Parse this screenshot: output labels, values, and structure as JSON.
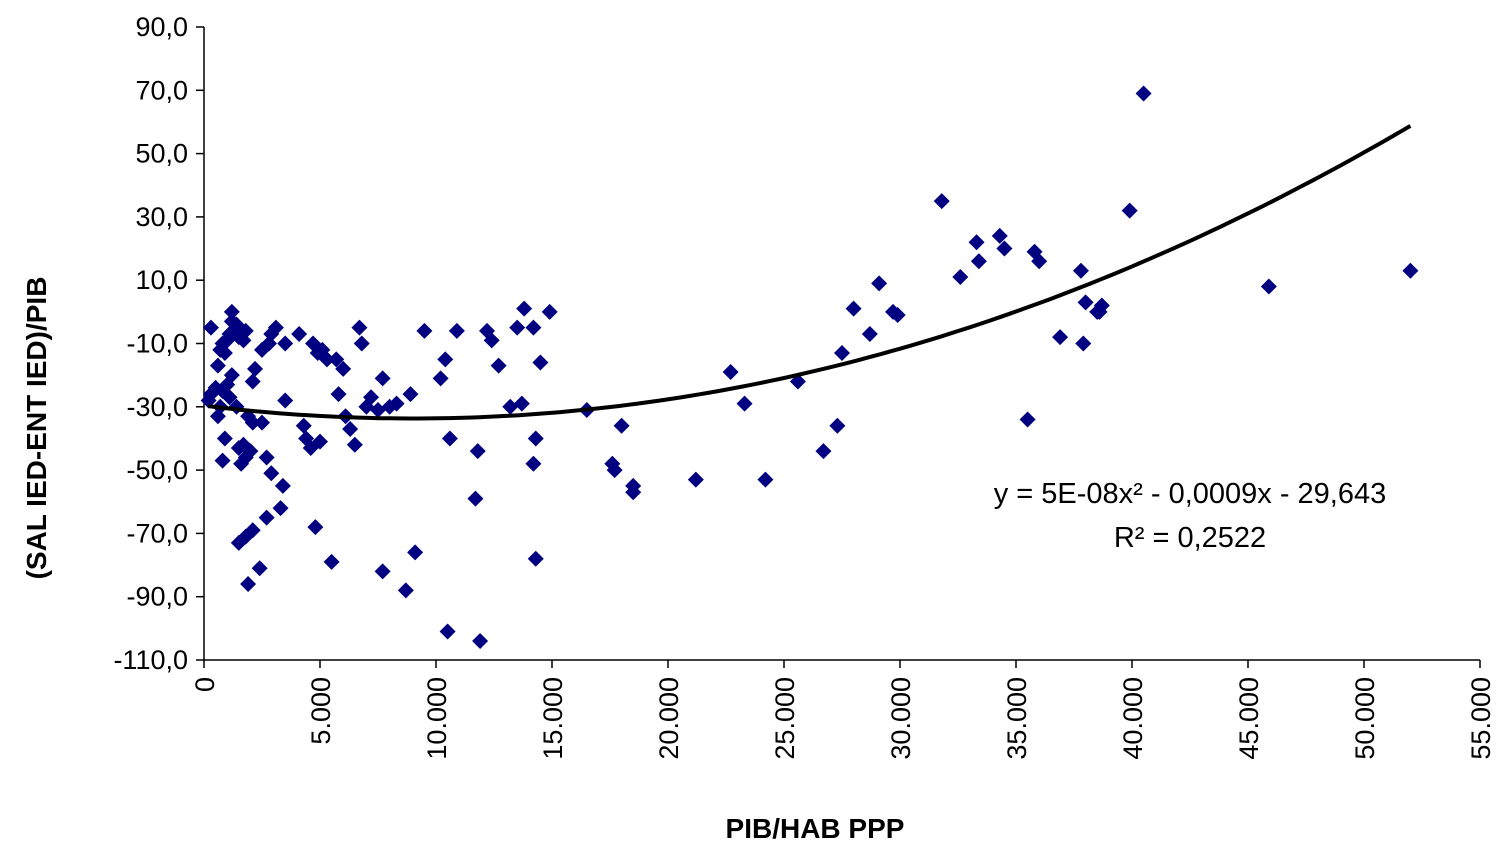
{
  "chart_data": {
    "type": "scatter",
    "xlabel": "PIB/HAB PPP",
    "ylabel": "(SAL IED-ENT IED)/PIB",
    "xlim": [
      0,
      55000
    ],
    "ylim": [
      -110,
      90
    ],
    "x_ticks": [
      0,
      5000,
      10000,
      15000,
      20000,
      25000,
      30000,
      35000,
      40000,
      45000,
      50000,
      55000
    ],
    "x_tick_labels": [
      "0",
      "5.000",
      "10.000",
      "15.000",
      "20.000",
      "25.000",
      "30.000",
      "35.000",
      "40.000",
      "45.000",
      "50.000",
      "55.000"
    ],
    "y_ticks": [
      90,
      70,
      50,
      30,
      10,
      -10,
      -30,
      -50,
      -70,
      -90,
      -110
    ],
    "y_tick_labels": [
      "90,0",
      "70,0",
      "50,0",
      "30,0",
      "10,0",
      "-10,0",
      "-30,0",
      "-50,0",
      "-70,0",
      "-90,0",
      "-110,0"
    ],
    "grid": false,
    "marker_color": "#000080",
    "trendline_color": "#000000",
    "trendline": {
      "type": "polynomial",
      "degree": 2,
      "coefficients": {
        "a": 5e-08,
        "b": -0.0009,
        "c": -29.643
      },
      "x_range": [
        200,
        52000
      ],
      "equation": "y = 5E-08x² - 0,0009x - 29,643",
      "r_squared": "R² = 0,2522"
    },
    "points": [
      [
        300,
        -5
      ],
      [
        200,
        -28
      ],
      [
        300,
        -26
      ],
      [
        500,
        -24
      ],
      [
        600,
        -33
      ],
      [
        700,
        -30
      ],
      [
        600,
        -17
      ],
      [
        700,
        -12
      ],
      [
        800,
        -10
      ],
      [
        900,
        -13
      ],
      [
        1000,
        -9
      ],
      [
        1100,
        -7
      ],
      [
        1200,
        0
      ],
      [
        1200,
        -3
      ],
      [
        1300,
        -6
      ],
      [
        1400,
        -4
      ],
      [
        1500,
        -8
      ],
      [
        1700,
        -9
      ],
      [
        1800,
        -6
      ],
      [
        800,
        -25
      ],
      [
        800,
        -47
      ],
      [
        900,
        -40
      ],
      [
        1000,
        -23
      ],
      [
        1100,
        -27
      ],
      [
        1200,
        -20
      ],
      [
        1400,
        -30
      ],
      [
        1500,
        -43
      ],
      [
        1600,
        -48
      ],
      [
        1700,
        -42
      ],
      [
        1800,
        -46
      ],
      [
        1900,
        -33
      ],
      [
        2000,
        -44
      ],
      [
        2100,
        -35
      ],
      [
        1500,
        -73
      ],
      [
        1800,
        -71
      ],
      [
        1900,
        -86
      ],
      [
        2100,
        -69
      ],
      [
        2400,
        -81
      ],
      [
        2200,
        -18
      ],
      [
        2100,
        -22
      ],
      [
        2500,
        -12
      ],
      [
        2800,
        -10
      ],
      [
        2900,
        -7
      ],
      [
        3100,
        -5
      ],
      [
        3500,
        -10
      ],
      [
        2500,
        -35
      ],
      [
        2700,
        -46
      ],
      [
        2900,
        -51
      ],
      [
        2700,
        -65
      ],
      [
        3300,
        -62
      ],
      [
        3400,
        -55
      ],
      [
        3500,
        -28
      ],
      [
        4100,
        -7
      ],
      [
        4300,
        -36
      ],
      [
        4400,
        -40
      ],
      [
        4600,
        -43
      ],
      [
        4700,
        -10
      ],
      [
        4900,
        -13
      ],
      [
        4800,
        -68
      ],
      [
        5000,
        -41
      ],
      [
        5100,
        -12
      ],
      [
        5300,
        -15
      ],
      [
        5500,
        -79
      ],
      [
        5700,
        -15
      ],
      [
        5800,
        -26
      ],
      [
        6000,
        -18
      ],
      [
        6100,
        -33
      ],
      [
        6300,
        -37
      ],
      [
        6500,
        -42
      ],
      [
        6700,
        -5
      ],
      [
        6800,
        -10
      ],
      [
        7000,
        -30
      ],
      [
        7200,
        -27
      ],
      [
        7500,
        -31
      ],
      [
        7700,
        -21
      ],
      [
        7700,
        -82
      ],
      [
        8000,
        -30
      ],
      [
        8300,
        -29
      ],
      [
        8700,
        -88
      ],
      [
        8900,
        -26
      ],
      [
        9100,
        -76
      ],
      [
        9500,
        -6
      ],
      [
        10200,
        -21
      ],
      [
        10400,
        -15
      ],
      [
        10500,
        -101
      ],
      [
        10600,
        -40
      ],
      [
        10900,
        -6
      ],
      [
        11700,
        -59
      ],
      [
        11900,
        -104
      ],
      [
        11800,
        -44
      ],
      [
        12200,
        -6
      ],
      [
        12400,
        -9
      ],
      [
        12700,
        -17
      ],
      [
        13200,
        -30
      ],
      [
        13500,
        -5
      ],
      [
        13700,
        -29
      ],
      [
        13800,
        1
      ],
      [
        14200,
        -5
      ],
      [
        14300,
        -40
      ],
      [
        14300,
        -78
      ],
      [
        14200,
        -48
      ],
      [
        14500,
        -16
      ],
      [
        14900,
        0
      ],
      [
        16500,
        -31
      ],
      [
        17600,
        -48
      ],
      [
        17700,
        -50
      ],
      [
        18000,
        -36
      ],
      [
        18500,
        -57
      ],
      [
        18500,
        -55
      ],
      [
        21200,
        -53
      ],
      [
        22700,
        -19
      ],
      [
        23300,
        -29
      ],
      [
        24200,
        -53
      ],
      [
        25600,
        -22
      ],
      [
        26700,
        -44
      ],
      [
        27300,
        -36
      ],
      [
        27500,
        -13
      ],
      [
        28000,
        1
      ],
      [
        28700,
        -7
      ],
      [
        29100,
        9
      ],
      [
        29700,
        0
      ],
      [
        29900,
        -1
      ],
      [
        31800,
        35
      ],
      [
        32600,
        11
      ],
      [
        33300,
        22
      ],
      [
        33400,
        16
      ],
      [
        34300,
        24
      ],
      [
        34500,
        20
      ],
      [
        35500,
        -34
      ],
      [
        35800,
        19
      ],
      [
        36000,
        16
      ],
      [
        36900,
        -8
      ],
      [
        37900,
        -10
      ],
      [
        37800,
        13
      ],
      [
        38000,
        3
      ],
      [
        38500,
        0
      ],
      [
        38600,
        0
      ],
      [
        38700,
        2
      ],
      [
        39900,
        32
      ],
      [
        40500,
        69
      ],
      [
        45900,
        8
      ],
      [
        52000,
        13
      ]
    ]
  }
}
